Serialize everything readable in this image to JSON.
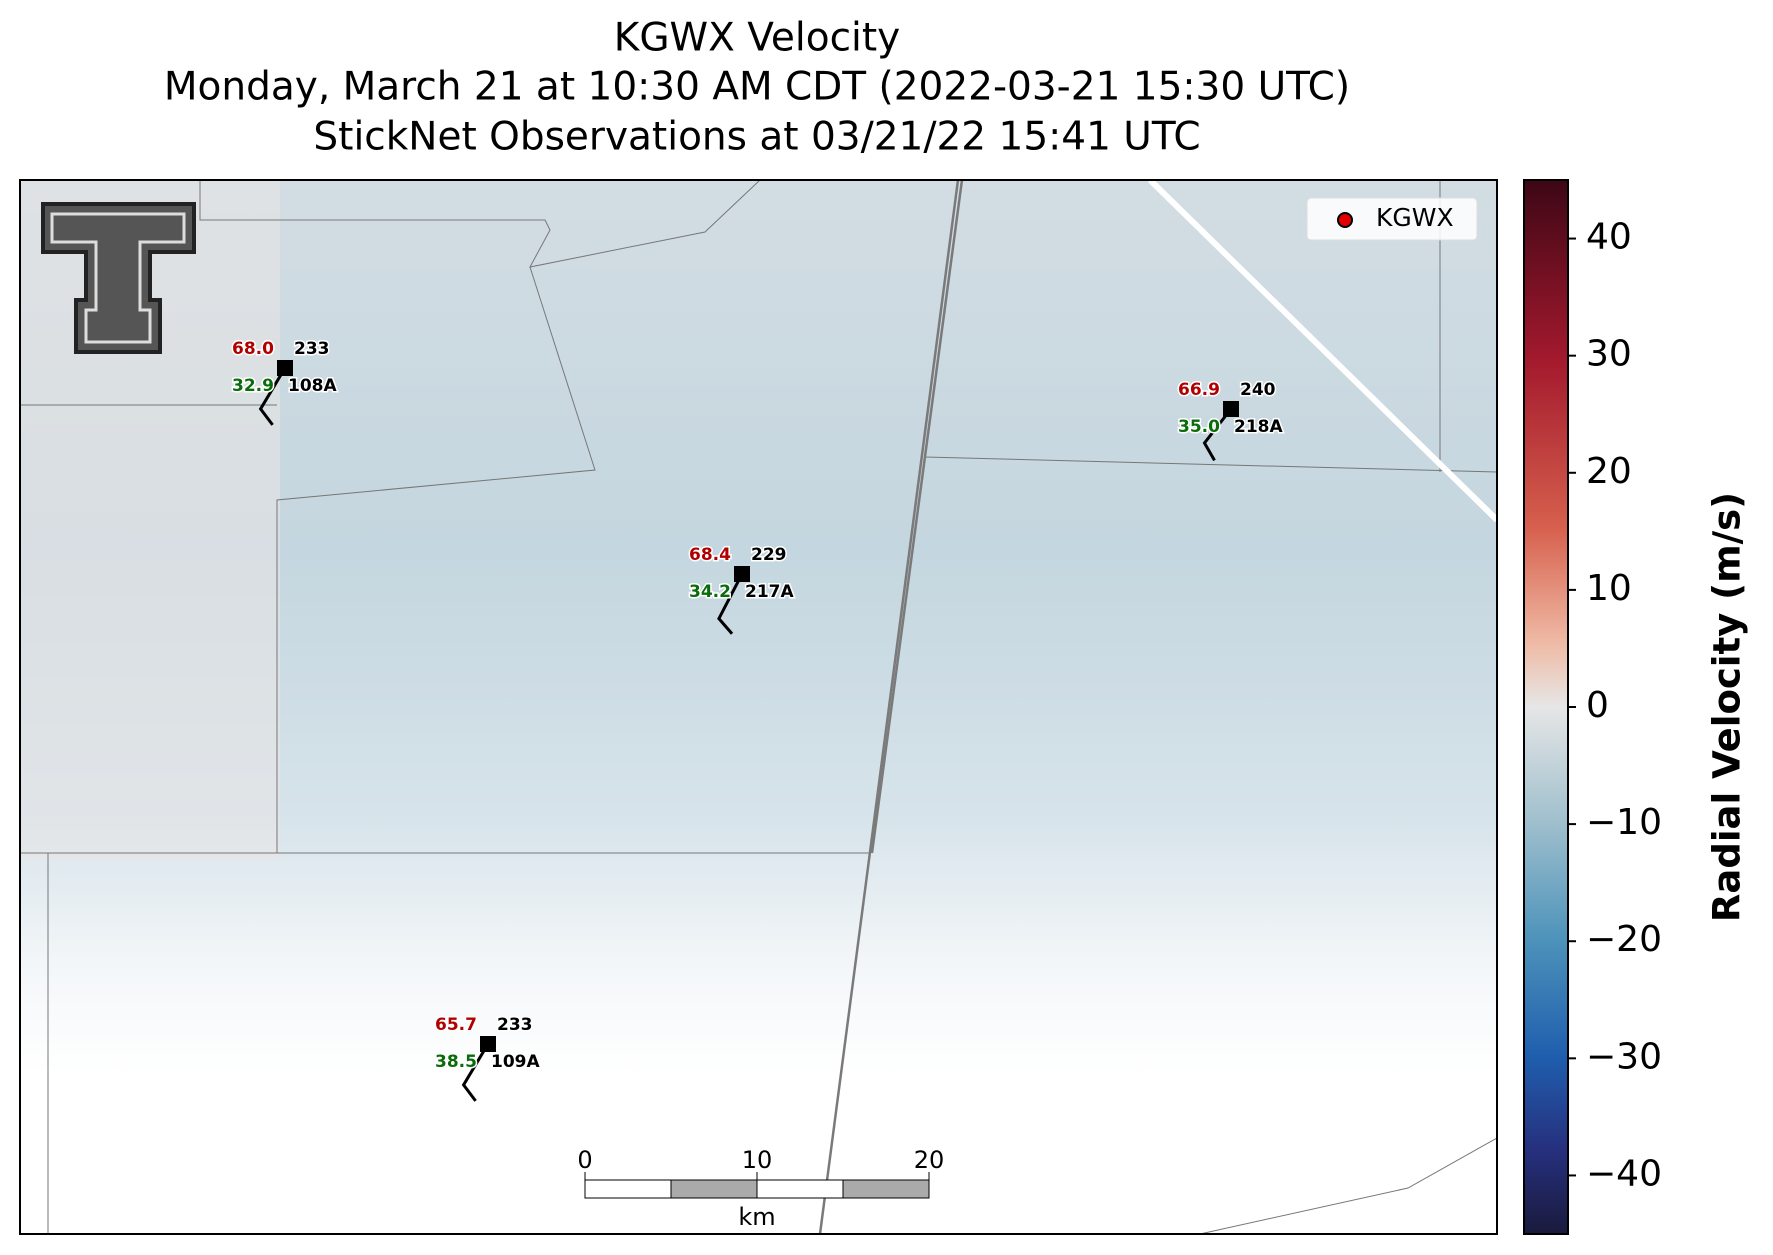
{
  "title": [
    "KGWX Velocity",
    "Monday, March 21 at 10:30 AM CDT (2022-03-21 15:30 UTC)",
    "StickNet Observations at 03/21/22 15:41 UTC"
  ],
  "legend": "KGWX",
  "colorbar": {
    "label": "Radial Velocity (m/s)",
    "lim": [
      -45,
      45
    ],
    "ticks": [
      40,
      30,
      20,
      10,
      0,
      {
        "value": -10,
        "label": "−10"
      },
      {
        "value": -20,
        "label": "−20"
      },
      {
        "value": -30,
        "label": "−30"
      },
      {
        "value": -40,
        "label": "−40"
      }
    ]
  },
  "scale_bar": {
    "ticks": [
      0,
      10,
      20
    ],
    "unit": "km"
  },
  "stations": [
    {
      "id": "108A",
      "temperature": "68.0",
      "dewpoint": "32.9",
      "direction": 233
    },
    {
      "id": "217A",
      "temperature": "68.4",
      "dewpoint": "34.2",
      "direction": 229
    },
    {
      "id": "218A",
      "temperature": "66.9",
      "dewpoint": "35.0",
      "direction": 240
    },
    {
      "id": "109A",
      "temperature": "65.7",
      "dewpoint": "38.5",
      "direction": 233
    }
  ]
}
